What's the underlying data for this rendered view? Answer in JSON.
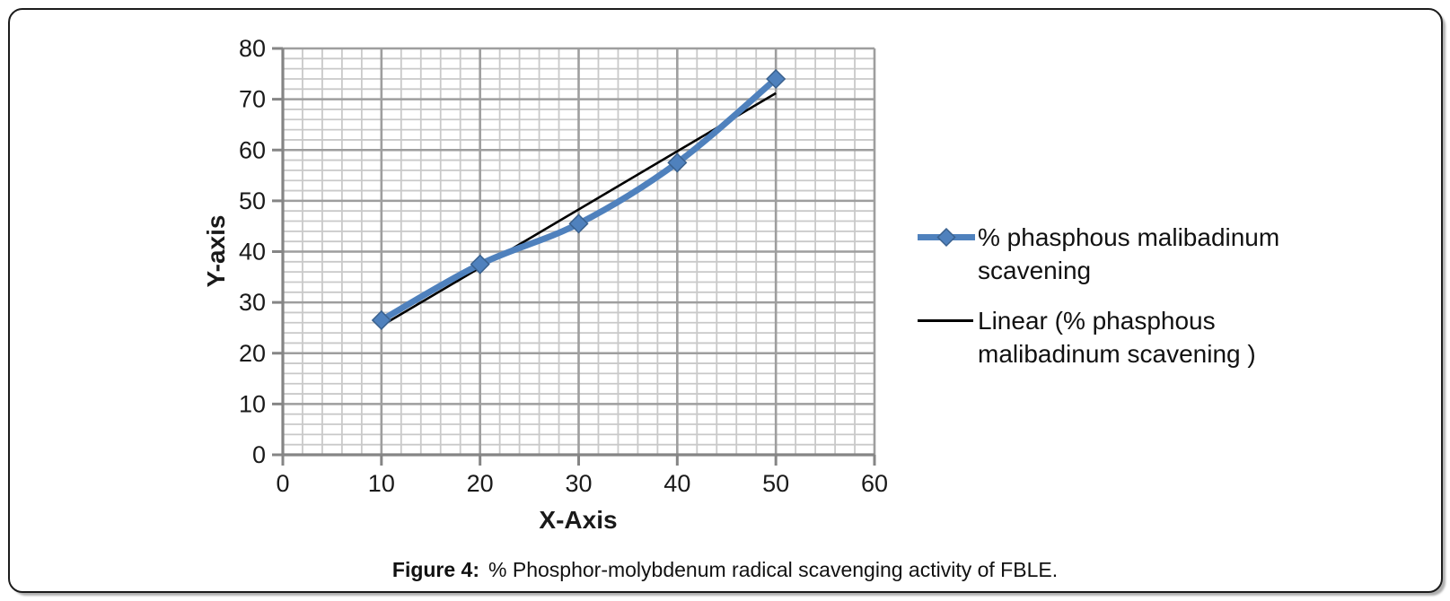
{
  "figure": {
    "caption_label": "Figure 4:",
    "caption_text": "% Phosphor-molybdenum radical scavenging activity of FBLE."
  },
  "legend": {
    "position": "right",
    "items": [
      {
        "marker": "blue-line-with-diamond",
        "lines": [
          "% phasphous malibadinum",
          "scavening"
        ]
      },
      {
        "marker": "black-line",
        "lines": [
          "Linear (% phasphous",
          "malibadinum scavening )"
        ]
      }
    ]
  },
  "chart_data": {
    "type": "line",
    "title": "",
    "xlabel": "X-Axis",
    "ylabel": "Y-axis",
    "x": [
      10,
      20,
      30,
      40,
      50
    ],
    "series": [
      {
        "name": "% phasphous malibadinum scavening",
        "values": [
          26.5,
          37.5,
          45.5,
          57.5,
          74
        ],
        "color": "#4f81bd",
        "marker": "diamond",
        "smoothed": true
      }
    ],
    "trendline": {
      "name": "Linear (% phasphous malibadinum scavening )",
      "fit": "linear",
      "x": [
        10,
        50
      ],
      "y": [
        25.4,
        71.2
      ],
      "color": "#000000"
    },
    "xlim": [
      0,
      60
    ],
    "ylim": [
      0,
      80
    ],
    "x_ticks": [
      0,
      10,
      20,
      30,
      40,
      50,
      60
    ],
    "y_ticks": [
      0,
      10,
      20,
      30,
      40,
      50,
      60,
      70,
      80
    ],
    "minor_step": 2,
    "grid": "major+minor",
    "legend_position": "right",
    "colors": {
      "series": "#4f81bd",
      "marker_border": "#3a618e",
      "trendline": "#000000",
      "grid_minor": "#c9c9c9",
      "grid_major": "#9e9e9e",
      "axis": "#858585",
      "text": "#1a1a1a"
    }
  }
}
